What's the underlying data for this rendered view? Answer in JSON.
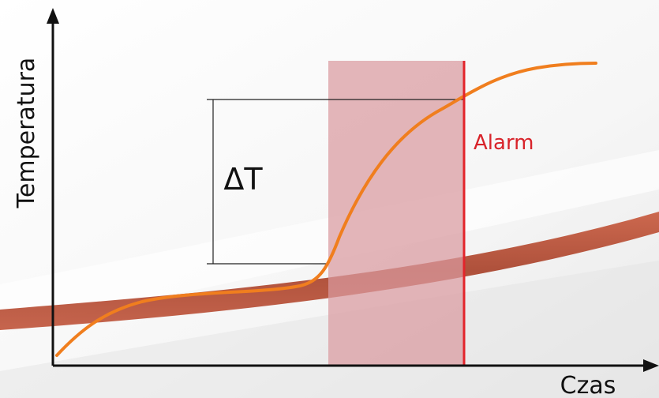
{
  "labels": {
    "y_axis": "Temperatura",
    "x_axis": "Czas",
    "delta": "ΔT",
    "alarm": "Alarm"
  },
  "colors": {
    "curve": "#f07e1e",
    "alarm_line": "#e3242b",
    "alarm_text": "#d8232a",
    "window_fill": "#d99aa0",
    "ribbon": "#b5492e",
    "axis": "#111111"
  }
}
